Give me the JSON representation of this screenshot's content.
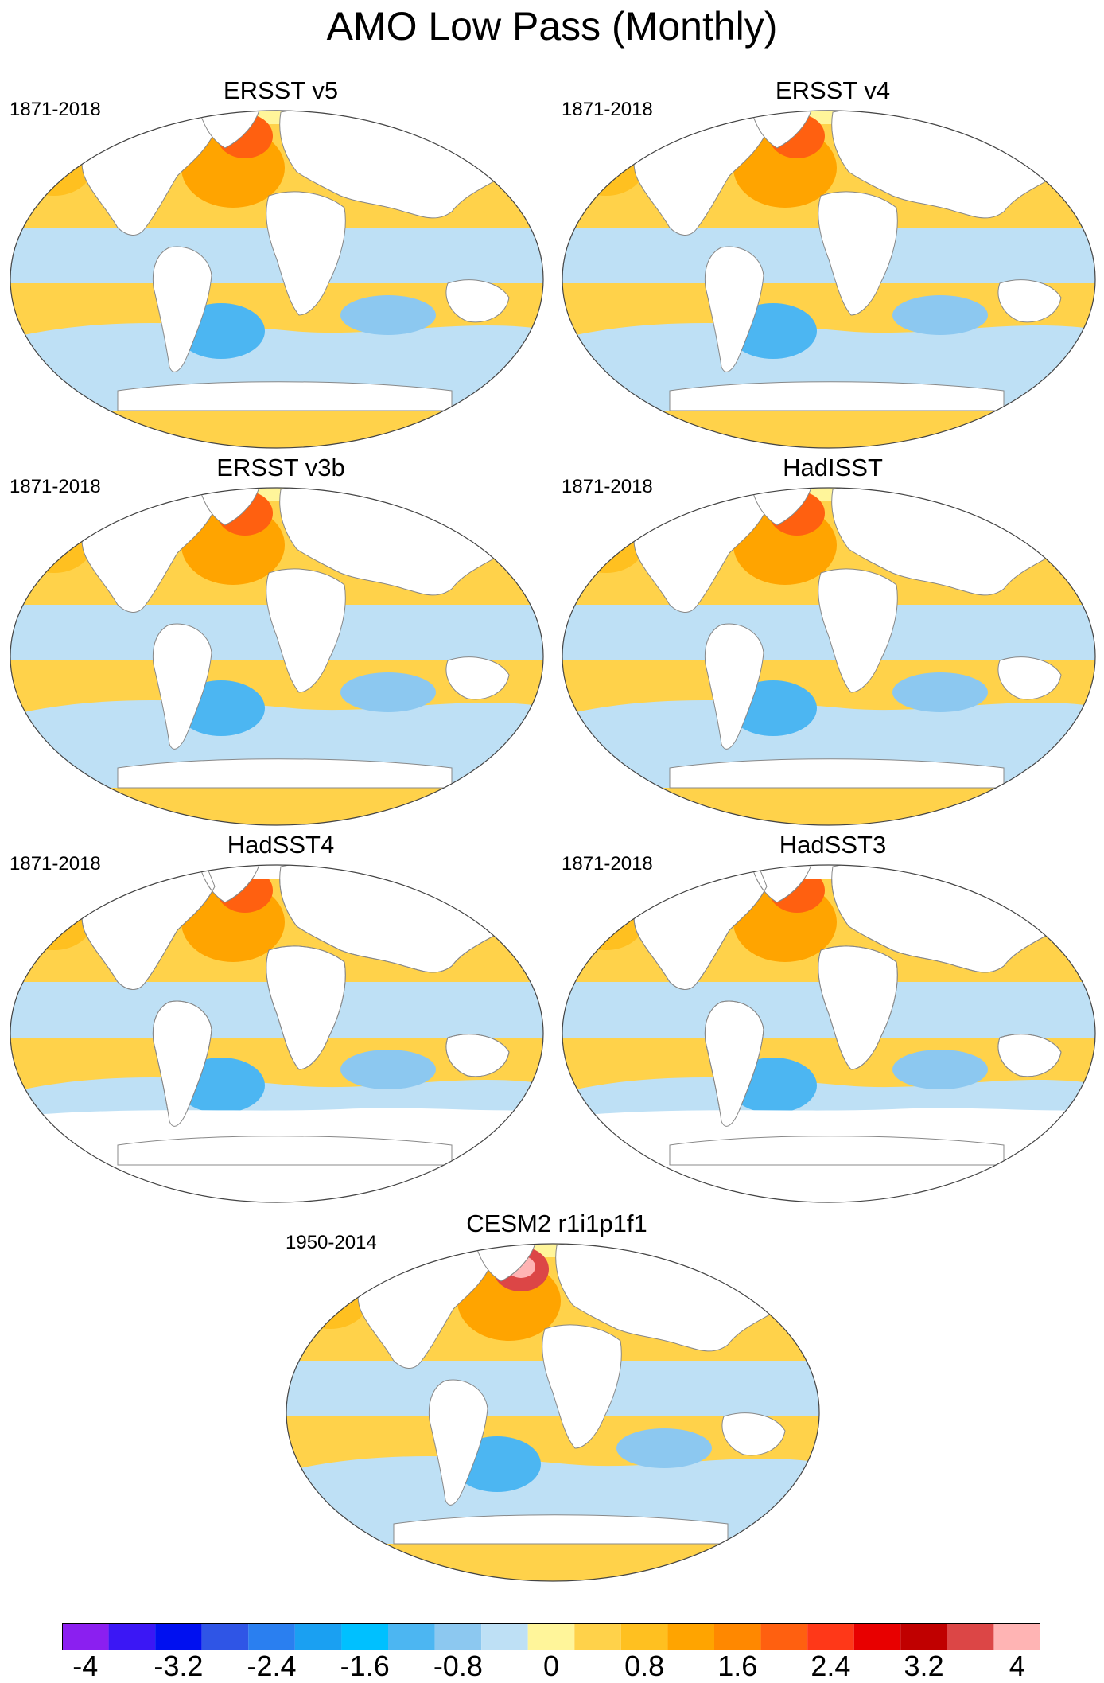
{
  "title": "AMO Low Pass (Monthly)",
  "panels": [
    {
      "title": "ERSST v5",
      "period": "1871-2018"
    },
    {
      "title": "ERSST v4",
      "period": "1871-2018"
    },
    {
      "title": "ERSST v3b",
      "period": "1871-2018"
    },
    {
      "title": "HadISST",
      "period": "1871-2018"
    },
    {
      "title": "HadSST4",
      "period": "1871-2018"
    },
    {
      "title": "HadSST3",
      "period": "1871-2018"
    },
    {
      "title": "CESM2 r1i1p1f1",
      "period": "1950-2014"
    }
  ],
  "colorbar": {
    "labels": [
      "-4",
      "-3.2",
      "-2.4",
      "-1.6",
      "-0.8",
      "0",
      "0.8",
      "1.6",
      "2.4",
      "3.2",
      "4"
    ],
    "colors": [
      "#8b1ff0",
      "#3b17f5",
      "#0010f0",
      "#2f55e6",
      "#2a7ff0",
      "#1aa0f2",
      "#00c0ff",
      "#4cb6f2",
      "#8cc8f0",
      "#bee0f5",
      "#fff59a",
      "#ffd24a",
      "#ffc020",
      "#ffa400",
      "#ff8800",
      "#ff6010",
      "#ff3818",
      "#e80000",
      "#c00000",
      "#dc4646",
      "#ffb4b4"
    ]
  },
  "colors": {
    "ocean_warm": "#ffd24a",
    "ocean_cool": "#bee0f5",
    "atlantic_hot": "#ff6010",
    "land": "#ffffff"
  }
}
